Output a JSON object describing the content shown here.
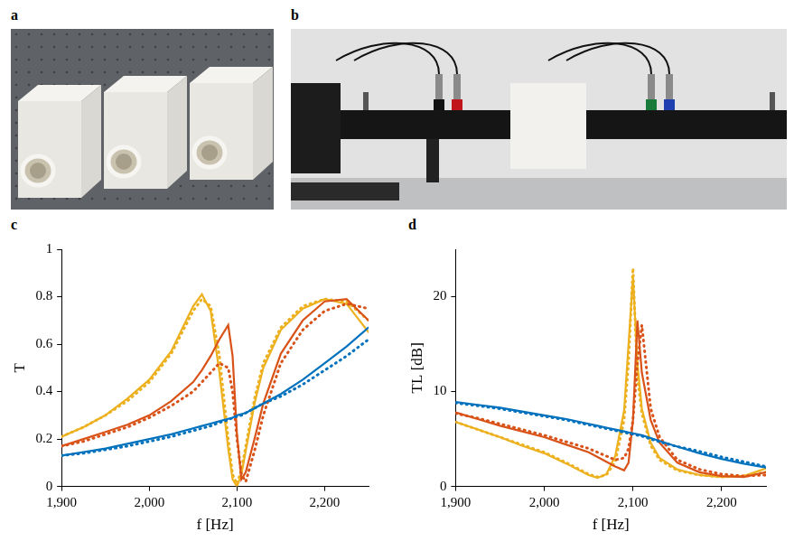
{
  "photos": [
    {
      "panel": "a"
    },
    {
      "panel": "b"
    }
  ],
  "chart_data": [
    {
      "panel": "c",
      "type": "line",
      "x_label": "f [Hz]",
      "y_label": "T",
      "grid": false,
      "xlim": [
        1900,
        2250
      ],
      "xticks": [
        {
          "value": 1900,
          "label": "1,900"
        },
        {
          "value": 2000,
          "label": "2,000"
        },
        {
          "value": 2100,
          "label": "2,100"
        },
        {
          "value": 2200,
          "label": "2,200"
        }
      ],
      "ylim": [
        0,
        1
      ],
      "yticks": [
        0,
        0.2,
        0.4,
        0.6,
        0.8,
        1
      ],
      "x": [
        1900,
        1925,
        1950,
        1975,
        2000,
        2025,
        2050,
        2060,
        2070,
        2080,
        2090,
        2095,
        2100,
        2105,
        2110,
        2120,
        2130,
        2150,
        2175,
        2200,
        2225,
        2250
      ],
      "series": [
        {
          "color": "#0072bd",
          "line_style": "solid",
          "values": [
            0.13,
            0.145,
            0.16,
            0.18,
            0.2,
            0.22,
            0.245,
            0.255,
            0.265,
            0.275,
            0.285,
            0.29,
            0.3,
            0.305,
            0.31,
            0.33,
            0.35,
            0.39,
            0.45,
            0.52,
            0.59,
            0.67
          ]
        },
        {
          "color": "#0072bd",
          "line_style": "dotted",
          "values": [
            0.13,
            0.14,
            0.155,
            0.17,
            0.19,
            0.21,
            0.235,
            0.245,
            0.255,
            0.27,
            0.28,
            0.29,
            0.295,
            0.3,
            0.31,
            0.33,
            0.35,
            0.38,
            0.43,
            0.49,
            0.55,
            0.62
          ]
        },
        {
          "color": "#d95319",
          "line_style": "solid",
          "values": [
            0.17,
            0.2,
            0.23,
            0.26,
            0.3,
            0.36,
            0.44,
            0.49,
            0.55,
            0.62,
            0.68,
            0.55,
            0.22,
            0.03,
            0.06,
            0.2,
            0.35,
            0.56,
            0.7,
            0.78,
            0.79,
            0.7
          ]
        },
        {
          "color": "#d95319",
          "line_style": "dotted",
          "values": [
            0.17,
            0.19,
            0.22,
            0.25,
            0.29,
            0.34,
            0.4,
            0.44,
            0.48,
            0.52,
            0.5,
            0.4,
            0.2,
            0.05,
            0.02,
            0.15,
            0.3,
            0.52,
            0.66,
            0.74,
            0.77,
            0.75
          ]
        },
        {
          "color": "#edb120",
          "line_style": "solid",
          "values": [
            0.21,
            0.25,
            0.3,
            0.37,
            0.45,
            0.57,
            0.76,
            0.81,
            0.74,
            0.48,
            0.16,
            0.03,
            0.0,
            0.05,
            0.15,
            0.35,
            0.5,
            0.66,
            0.75,
            0.79,
            0.77,
            0.65
          ]
        },
        {
          "color": "#edb120",
          "line_style": "dotted",
          "values": [
            0.21,
            0.25,
            0.3,
            0.36,
            0.44,
            0.56,
            0.74,
            0.79,
            0.76,
            0.55,
            0.2,
            0.05,
            0.01,
            0.07,
            0.17,
            0.37,
            0.52,
            0.67,
            0.76,
            0.79,
            0.78,
            0.7
          ]
        }
      ]
    },
    {
      "panel": "d",
      "type": "line",
      "x_label": "f [Hz]",
      "y_label": "TL [dB]",
      "grid": false,
      "xlim": [
        1900,
        2250
      ],
      "xticks": [
        {
          "value": 1900,
          "label": "1,900"
        },
        {
          "value": 2000,
          "label": "2,000"
        },
        {
          "value": 2100,
          "label": "2,100"
        },
        {
          "value": 2200,
          "label": "2,200"
        }
      ],
      "ylim": [
        0,
        25
      ],
      "yticks": [
        0,
        10,
        20
      ],
      "x": [
        1900,
        1925,
        1950,
        1975,
        2000,
        2025,
        2050,
        2060,
        2070,
        2080,
        2090,
        2095,
        2100,
        2105,
        2110,
        2120,
        2130,
        2150,
        2175,
        2200,
        2225,
        2250
      ],
      "series": [
        {
          "color": "#0072bd",
          "line_style": "solid",
          "values": [
            8.9,
            8.6,
            8.3,
            7.9,
            7.5,
            7.1,
            6.6,
            6.4,
            6.2,
            6.0,
            5.8,
            5.7,
            5.6,
            5.5,
            5.4,
            5.1,
            4.8,
            4.2,
            3.5,
            2.9,
            2.4,
            2.0
          ]
        },
        {
          "color": "#0072bd",
          "line_style": "dotted",
          "values": [
            8.8,
            8.5,
            8.2,
            7.8,
            7.4,
            7.0,
            6.5,
            6.3,
            6.1,
            5.9,
            5.7,
            5.6,
            5.5,
            5.4,
            5.3,
            5.0,
            4.7,
            4.2,
            3.7,
            3.1,
            2.6,
            2.1
          ]
        },
        {
          "color": "#d95319",
          "line_style": "solid",
          "values": [
            7.8,
            7.1,
            6.4,
            5.8,
            5.2,
            4.4,
            3.6,
            3.1,
            2.6,
            2.1,
            1.7,
            2.5,
            7.0,
            17.5,
            12.0,
            7.0,
            4.6,
            2.5,
            1.5,
            1.1,
            1.0,
            1.5
          ]
        },
        {
          "color": "#d95319",
          "line_style": "dotted",
          "values": [
            7.7,
            7.2,
            6.6,
            6.0,
            5.4,
            4.7,
            4.0,
            3.6,
            3.2,
            2.8,
            3.0,
            4.0,
            7.0,
            13.0,
            17.0,
            8.2,
            5.2,
            2.8,
            1.8,
            1.3,
            1.1,
            1.2
          ]
        },
        {
          "color": "#edb120",
          "line_style": "solid",
          "values": [
            6.8,
            6.0,
            5.2,
            4.3,
            3.5,
            2.4,
            1.2,
            0.9,
            1.3,
            3.2,
            8.0,
            15.0,
            22.0,
            13.0,
            8.2,
            4.6,
            3.0,
            1.8,
            1.2,
            1.0,
            1.1,
            1.9
          ]
        },
        {
          "color": "#edb120",
          "line_style": "dotted",
          "values": [
            6.8,
            6.0,
            5.2,
            4.4,
            3.6,
            2.5,
            1.3,
            1.0,
            1.2,
            2.6,
            7.0,
            13.0,
            23.0,
            11.5,
            7.7,
            4.3,
            2.8,
            1.7,
            1.2,
            1.0,
            1.1,
            1.5
          ]
        }
      ]
    }
  ]
}
